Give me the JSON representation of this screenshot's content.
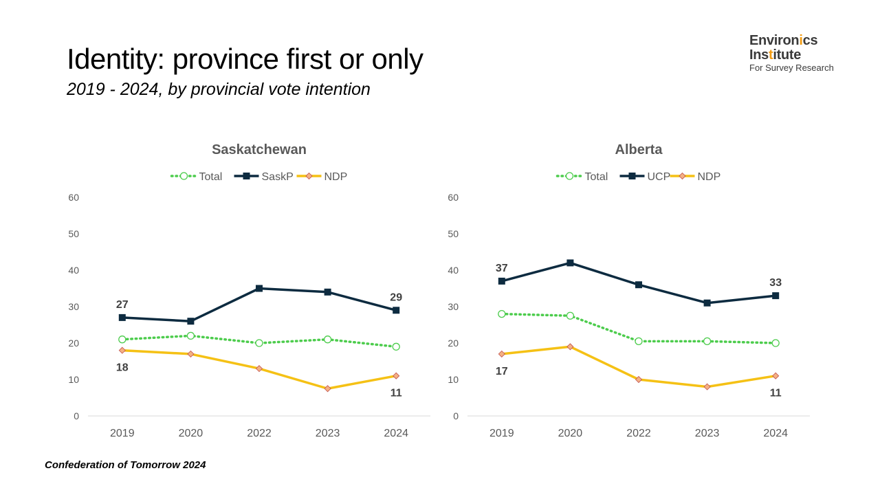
{
  "header": {
    "title": "Identity: province first or only",
    "subtitle": "2019 - 2024, by provincial vote intention"
  },
  "logo": {
    "line1_part1": "Environ",
    "line1_part2": "i",
    "line1_part3": "cs",
    "line2_part1": "Ins",
    "line2_part2": "t",
    "line2_part3": "itute",
    "line3": "For Survey Research"
  },
  "footer": {
    "source": "Confederation of Tomorrow 2024"
  },
  "colors": {
    "total": "#4ccc4c",
    "party_main": "#0d2b40",
    "ndp": "#f5c115",
    "ndp_marker_fill": "#f4b183",
    "ndp_marker_stroke": "#c0504d",
    "axis": "#d9d9d9",
    "logo_accent": "#f39c12"
  },
  "chart_data": [
    {
      "type": "line",
      "title": "Saskatchewan",
      "categories": [
        "2019",
        "2020",
        "2022",
        "2023",
        "2024"
      ],
      "ylim": [
        0,
        60
      ],
      "yticks": [
        "0",
        "10",
        "20",
        "30",
        "40",
        "50",
        "60"
      ],
      "legend_position": "top",
      "grid": false,
      "series": [
        {
          "name": "Total",
          "key": "total",
          "values": [
            21,
            22,
            20,
            21,
            19
          ],
          "labels": [
            "",
            "",
            "",
            "",
            ""
          ]
        },
        {
          "name": "SaskP",
          "key": "party",
          "values": [
            27,
            26,
            35,
            34,
            29
          ],
          "labels": [
            "27",
            "",
            "",
            "",
            "29"
          ]
        },
        {
          "name": "NDP",
          "key": "ndp",
          "values": [
            18,
            17,
            13,
            7.5,
            11
          ],
          "labels": [
            "18",
            "",
            "",
            "",
            "11"
          ]
        }
      ]
    },
    {
      "type": "line",
      "title": "Alberta",
      "categories": [
        "2019",
        "2020",
        "2022",
        "2023",
        "2024"
      ],
      "ylim": [
        0,
        60
      ],
      "yticks": [
        "0",
        "10",
        "20",
        "30",
        "40",
        "50",
        "60"
      ],
      "legend_position": "top",
      "grid": false,
      "series": [
        {
          "name": "Total",
          "key": "total",
          "values": [
            28,
            27.5,
            20.5,
            20.5,
            20
          ],
          "labels": [
            "",
            "",
            "",
            "",
            ""
          ]
        },
        {
          "name": "UCP",
          "key": "party",
          "values": [
            37,
            42,
            36,
            31,
            33
          ],
          "labels": [
            "37",
            "",
            "",
            "",
            "33"
          ]
        },
        {
          "name": "NDP",
          "key": "ndp",
          "values": [
            17,
            19,
            10,
            8,
            11
          ],
          "labels": [
            "17",
            "",
            "",
            "",
            "11"
          ]
        }
      ]
    }
  ]
}
